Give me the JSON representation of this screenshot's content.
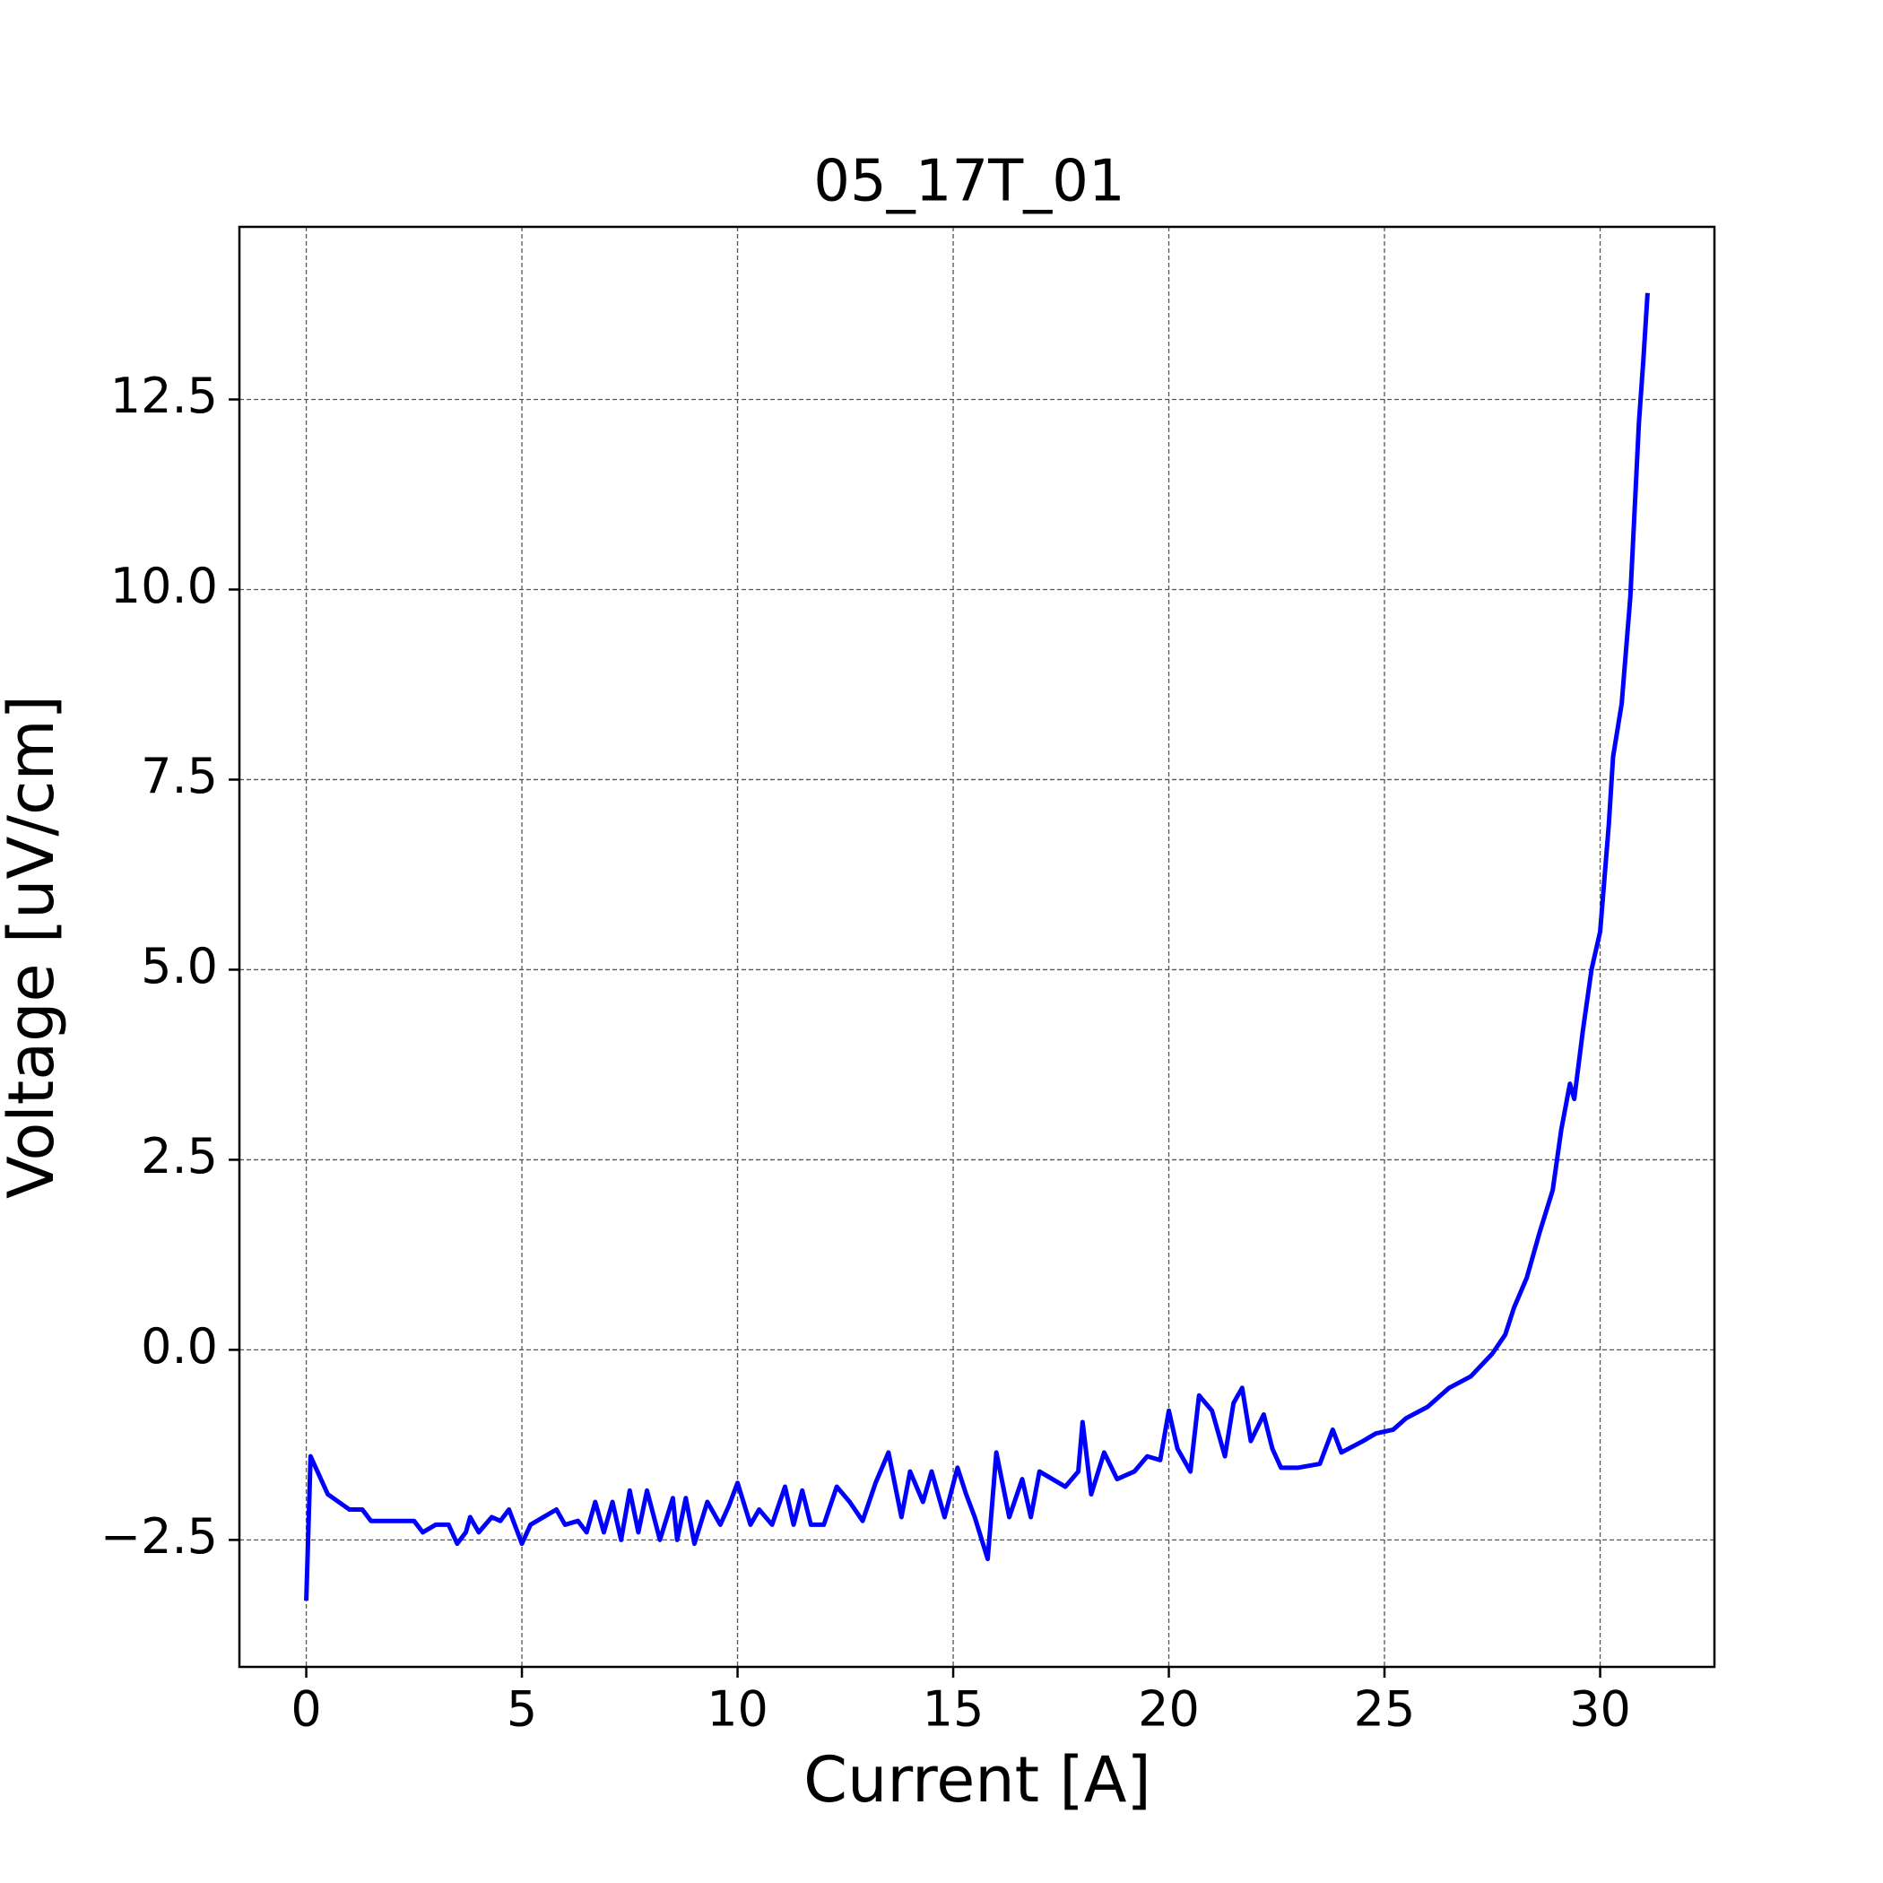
{
  "chart_data": {
    "type": "line",
    "title": "05_17T_01",
    "x_label": "Current [A]",
    "y_label": "Voltage [uV/cm]",
    "xlim": [
      -1.55,
      32.65
    ],
    "ylim": [
      -4.17,
      14.77
    ],
    "xticks": [
      0,
      5,
      10,
      15,
      20,
      25,
      30
    ],
    "yticks": [
      {
        "value": -2.5,
        "label": "−2.5"
      },
      {
        "value": 0,
        "label": "0.0"
      },
      2.5,
      {
        "value": 5,
        "label": "5.0"
      },
      7.5,
      {
        "value": 10,
        "label": "10.0"
      },
      12.5
    ],
    "grid": true,
    "x": [
      0,
      0.1,
      0.5,
      1.0,
      1.3,
      1.5,
      2.0,
      2.5,
      2.7,
      3.0,
      3.3,
      3.5,
      3.7,
      3.8,
      4.0,
      4.3,
      4.5,
      4.7,
      5.0,
      5.2,
      5.5,
      5.8,
      6.0,
      6.3,
      6.5,
      6.7,
      6.9,
      7.1,
      7.3,
      7.5,
      7.7,
      7.9,
      8.2,
      8.5,
      8.6,
      8.8,
      9.0,
      9.3,
      9.6,
      9.8,
      10.0,
      10.3,
      10.5,
      10.8,
      11.1,
      11.3,
      11.5,
      11.7,
      12.0,
      12.3,
      12.6,
      12.9,
      13.2,
      13.5,
      13.8,
      14.0,
      14.3,
      14.5,
      14.8,
      15.1,
      15.3,
      15.5,
      15.8,
      16.0,
      16.3,
      16.6,
      16.8,
      17.0,
      17.3,
      17.6,
      17.9,
      18.0,
      18.2,
      18.5,
      18.8,
      19.2,
      19.5,
      19.8,
      20.0,
      20.2,
      20.5,
      20.7,
      21.0,
      21.3,
      21.5,
      21.7,
      21.9,
      22.2,
      22.4,
      22.6,
      23.0,
      23.5,
      23.8,
      24.0,
      24.5,
      24.8,
      25.2,
      25.5,
      26.0,
      26.5,
      27.0,
      27.5,
      27.8,
      28.0,
      28.3,
      28.6,
      28.9,
      29.1,
      29.3,
      29.4,
      29.6,
      29.8,
      30.0,
      30.2,
      30.3,
      30.5,
      30.7,
      30.9,
      31.0,
      31.1
    ],
    "series": [
      {
        "name": "05_17T_01",
        "color": "#0000ff",
        "values": [
          -3.3,
          -1.4,
          -1.9,
          -2.1,
          -2.1,
          -2.25,
          -2.25,
          -2.25,
          -2.4,
          -2.3,
          -2.3,
          -2.55,
          -2.4,
          -2.2,
          -2.4,
          -2.2,
          -2.25,
          -2.1,
          -2.55,
          -2.3,
          -2.2,
          -2.1,
          -2.3,
          -2.25,
          -2.4,
          -2.0,
          -2.4,
          -2.0,
          -2.5,
          -1.85,
          -2.4,
          -1.85,
          -2.5,
          -1.95,
          -2.5,
          -1.95,
          -2.55,
          -2.0,
          -2.3,
          -2.05,
          -1.75,
          -2.3,
          -2.1,
          -2.3,
          -1.8,
          -2.3,
          -1.85,
          -2.3,
          -2.3,
          -1.8,
          -2.0,
          -2.25,
          -1.75,
          -1.35,
          -2.2,
          -1.6,
          -2.0,
          -1.6,
          -2.2,
          -1.55,
          -1.9,
          -2.2,
          -2.75,
          -1.35,
          -2.2,
          -1.7,
          -2.2,
          -1.6,
          -1.7,
          -1.8,
          -1.6,
          -0.95,
          -1.9,
          -1.35,
          -1.7,
          -1.6,
          -1.4,
          -1.45,
          -0.8,
          -1.3,
          -1.6,
          -0.6,
          -0.8,
          -1.4,
          -0.7,
          -0.5,
          -1.2,
          -0.85,
          -1.3,
          -1.55,
          -1.55,
          -1.5,
          -1.05,
          -1.35,
          -1.2,
          -1.1,
          -1.05,
          -0.9,
          -0.75,
          -0.5,
          -0.35,
          -0.05,
          0.2,
          0.55,
          0.95,
          1.55,
          2.1,
          2.9,
          3.5,
          3.3,
          4.2,
          5.0,
          5.5,
          6.9,
          7.8,
          8.5,
          9.9,
          12.2,
          13.0,
          13.9
        ]
      }
    ]
  }
}
